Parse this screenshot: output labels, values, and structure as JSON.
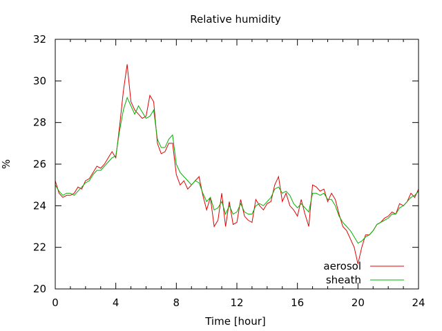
{
  "chart_data": {
    "type": "line",
    "title": "Relative humidity",
    "xlabel": "Time [hour]",
    "ylabel": "%",
    "xlim": [
      0,
      24
    ],
    "ylim": [
      20,
      32
    ],
    "xticks": [
      0,
      4,
      8,
      12,
      16,
      20,
      24
    ],
    "yticks": [
      20,
      22,
      24,
      26,
      28,
      30,
      32
    ],
    "xtick_labels": [
      "0",
      "4",
      "8",
      "12",
      "16",
      "20",
      "24"
    ],
    "ytick_labels": [
      "20",
      "22",
      "24",
      "26",
      "28",
      "30",
      "32"
    ],
    "grid": false,
    "legend_position": "bottom-right",
    "series": [
      {
        "name": "aerosol",
        "color": "#e00000",
        "x": [
          0,
          0.25,
          0.5,
          0.75,
          1,
          1.25,
          1.5,
          1.75,
          2,
          2.25,
          2.5,
          2.75,
          3,
          3.25,
          3.5,
          3.75,
          4,
          4.25,
          4.5,
          4.75,
          5,
          5.25,
          5.5,
          5.75,
          6,
          6.25,
          6.5,
          6.75,
          7,
          7.25,
          7.5,
          7.75,
          8,
          8.25,
          8.5,
          8.75,
          9,
          9.25,
          9.5,
          9.75,
          10,
          10.25,
          10.5,
          10.75,
          11,
          11.25,
          11.5,
          11.75,
          12,
          12.25,
          12.5,
          12.75,
          13,
          13.25,
          13.5,
          13.75,
          14,
          14.25,
          14.5,
          14.75,
          15,
          15.25,
          15.5,
          15.75,
          16,
          16.25,
          16.5,
          16.75,
          17,
          17.25,
          17.5,
          17.75,
          18,
          18.25,
          18.5,
          18.75,
          19,
          19.25,
          19.5,
          19.75,
          20,
          20.25,
          20.5,
          20.75,
          21,
          21.25,
          21.5,
          21.75,
          22,
          22.25,
          22.5,
          22.75,
          23,
          23.25,
          23.5,
          23.75,
          24
        ],
        "y": [
          25.2,
          24.6,
          24.4,
          24.5,
          24.5,
          24.6,
          24.9,
          24.8,
          25.2,
          25.3,
          25.6,
          25.9,
          25.8,
          26.0,
          26.3,
          26.6,
          26.3,
          27.8,
          29.5,
          30.8,
          29.0,
          28.6,
          28.4,
          28.2,
          28.3,
          29.3,
          29.0,
          27.0,
          26.5,
          26.6,
          27.0,
          27.0,
          25.5,
          25.0,
          25.2,
          24.8,
          25.0,
          25.2,
          25.4,
          24.5,
          23.8,
          24.4,
          23.0,
          23.3,
          24.6,
          23.0,
          24.2,
          23.1,
          23.2,
          24.3,
          23.5,
          23.3,
          23.2,
          24.3,
          24.0,
          23.8,
          24.1,
          24.2,
          25.0,
          25.4,
          24.2,
          24.6,
          24.0,
          23.8,
          23.5,
          24.3,
          23.6,
          23.0,
          25.0,
          24.9,
          24.7,
          24.8,
          24.2,
          24.6,
          24.3,
          23.6,
          23.0,
          22.8,
          22.4,
          22.0,
          21.2,
          22.0,
          22.6,
          22.6,
          22.8,
          23.1,
          23.2,
          23.4,
          23.5,
          23.7,
          23.6,
          24.1,
          24.0,
          24.2,
          24.6,
          24.4,
          24.8
        ]
      },
      {
        "name": "sheath",
        "color": "#00b000",
        "x": [
          0,
          0.25,
          0.5,
          0.75,
          1,
          1.25,
          1.5,
          1.75,
          2,
          2.25,
          2.5,
          2.75,
          3,
          3.25,
          3.5,
          3.75,
          4,
          4.25,
          4.5,
          4.75,
          5,
          5.25,
          5.5,
          5.75,
          6,
          6.25,
          6.5,
          6.75,
          7,
          7.25,
          7.5,
          7.75,
          8,
          8.25,
          8.5,
          8.75,
          9,
          9.25,
          9.5,
          9.75,
          10,
          10.25,
          10.5,
          10.75,
          11,
          11.25,
          11.5,
          11.75,
          12,
          12.25,
          12.5,
          12.75,
          13,
          13.25,
          13.5,
          13.75,
          14,
          14.25,
          14.5,
          14.75,
          15,
          15.25,
          15.5,
          15.75,
          16,
          16.25,
          16.5,
          16.75,
          17,
          17.25,
          17.5,
          17.75,
          18,
          18.25,
          18.5,
          18.75,
          19,
          19.25,
          19.5,
          19.75,
          20,
          20.25,
          20.5,
          20.75,
          21,
          21.25,
          21.5,
          21.75,
          22,
          22.25,
          22.5,
          22.75,
          23,
          23.25,
          23.5,
          23.75,
          24
        ],
        "y": [
          25.0,
          24.7,
          24.5,
          24.6,
          24.6,
          24.5,
          24.7,
          24.9,
          25.1,
          25.2,
          25.5,
          25.7,
          25.7,
          25.9,
          26.1,
          26.3,
          26.4,
          27.6,
          28.6,
          29.2,
          28.8,
          28.4,
          28.8,
          28.5,
          28.2,
          28.3,
          28.6,
          27.2,
          26.8,
          26.8,
          27.2,
          27.4,
          26.0,
          25.6,
          25.4,
          25.2,
          25.0,
          25.2,
          25.1,
          24.6,
          24.2,
          24.4,
          23.8,
          23.9,
          24.2,
          23.6,
          24.0,
          23.6,
          23.7,
          24.1,
          23.7,
          23.6,
          23.6,
          24.0,
          24.1,
          24.0,
          24.2,
          24.4,
          24.8,
          24.9,
          24.6,
          24.7,
          24.5,
          24.1,
          23.9,
          24.1,
          23.9,
          23.7,
          24.6,
          24.6,
          24.5,
          24.6,
          24.3,
          24.3,
          24.0,
          23.5,
          23.2,
          23.0,
          22.8,
          22.5,
          22.2,
          22.3,
          22.5,
          22.6,
          22.8,
          23.1,
          23.2,
          23.3,
          23.4,
          23.6,
          23.6,
          23.9,
          24.0,
          24.2,
          24.4,
          24.5,
          24.7
        ]
      }
    ]
  }
}
